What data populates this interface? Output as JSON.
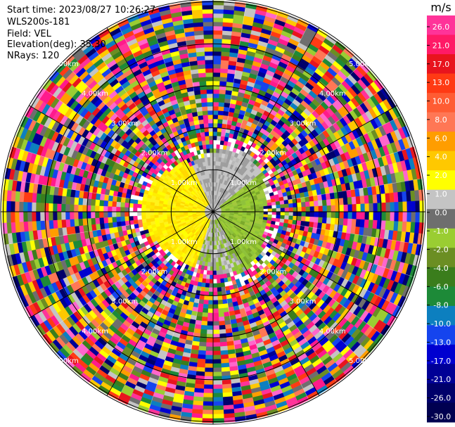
{
  "info": {
    "start_time": "Start time: 2023/08/27 10:26:27",
    "instrument": "WLS200s-181",
    "field": "Field: VEL",
    "elevation": "Elevation(deg): 35.30",
    "nrays": "NRays: 120"
  },
  "chart_data": {
    "type": "ppi-scan",
    "field": "VEL",
    "units": "m/s",
    "range_rings_km": [
      1.0,
      2.0,
      3.0,
      4.0,
      5.0
    ],
    "range_ring_labels": [
      "1.00km",
      "2.00km",
      "3.00km",
      "4.00km",
      "5.00km"
    ],
    "nrays": 120,
    "colorbar": {
      "label": "m/s",
      "ticks": [
        "26.0",
        "21.0",
        "17.0",
        "13.0",
        "10.0",
        "8.0",
        "6.0",
        "4.0",
        "2.0",
        "1.0",
        "0.0",
        "-1.0",
        "-2.0",
        "-4.0",
        "-6.0",
        "-8.0",
        "-10.0",
        "-13.0",
        "-17.0",
        "-21.0",
        "-26.0",
        "-30.0"
      ],
      "colors": [
        "#ff3399",
        "#ff1a66",
        "#e8141e",
        "#ff3a14",
        "#ff5c33",
        "#ff7755",
        "#ff9d00",
        "#ffc800",
        "#ffff00",
        "#c4c4c4",
        "#6e6e6e",
        "#9acd32",
        "#6b8e23",
        "#3a7d1c",
        "#1d8a38",
        "#0c7fbf",
        "#1544ee",
        "#0000d0",
        "#000096",
        "#00006a",
        "#000050"
      ]
    }
  }
}
